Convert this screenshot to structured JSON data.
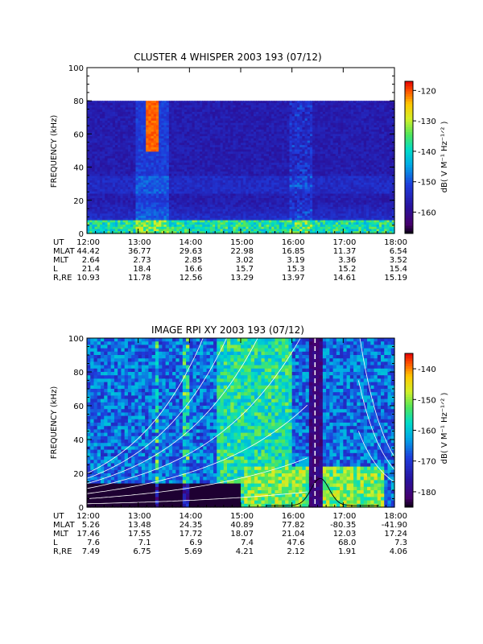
{
  "chart_data": [
    {
      "type": "heatmap",
      "title": "CLUSTER 4 WHISPER 2003 193 (07/12)",
      "ylabel": "FREQUENCY (kHz)",
      "yticks": [
        0,
        20,
        40,
        60,
        80,
        100
      ],
      "ylim": [
        0,
        100
      ],
      "data_top_khz": 80,
      "colorbar": {
        "label": "dB( V M⁻¹ Hz⁻¹ᐟ² )",
        "ticks": [
          -120,
          -130,
          -140,
          -150,
          -160
        ],
        "range": [
          -167,
          -117
        ]
      },
      "xticks": [
        "12:00",
        "13:00",
        "14:00",
        "15:00",
        "16:00",
        "17:00",
        "18:00"
      ],
      "xlim_hours": [
        12,
        18
      ],
      "ephemeris": [
        {
          "label": "UT",
          "values": [
            "12:00",
            "13:00",
            "14:00",
            "15:00",
            "16:00",
            "17:00",
            "18:00"
          ]
        },
        {
          "label": "MLAT",
          "values": [
            "44.42",
            "36.77",
            "29.63",
            "22.98",
            "16.85",
            "11.37",
            "6.54"
          ]
        },
        {
          "label": "MLT",
          "values": [
            "2.64",
            "2.73",
            "2.85",
            "3.02",
            "3.19",
            "3.36",
            "3.52"
          ]
        },
        {
          "label": "L",
          "values": [
            "21.4",
            "18.4",
            "16.6",
            "15.7",
            "15.3",
            "15.2",
            "15.4"
          ]
        },
        {
          "label": "R,RE",
          "values": [
            "10.93",
            "11.78",
            "12.56",
            "13.29",
            "13.97",
            "14.61",
            "15.19"
          ]
        }
      ]
    },
    {
      "type": "heatmap",
      "title": "IMAGE RPI XY 2003 193 (07/12)",
      "ylabel": "FREQUENCY (kHz)",
      "yticks": [
        0,
        20,
        40,
        60,
        80,
        100
      ],
      "ylim": [
        0,
        100
      ],
      "colorbar": {
        "label": "dB( V M⁻¹ Hz⁻¹ᐟ² )",
        "ticks": [
          -140,
          -150,
          -160,
          -170,
          -180
        ],
        "range": [
          -185,
          -135
        ]
      },
      "xticks": [
        "12:00",
        "13:00",
        "14:00",
        "15:00",
        "16:00",
        "17:00",
        "18:00"
      ],
      "xlim_hours": [
        12,
        18
      ],
      "ephemeris": [
        {
          "label": "UT",
          "values": [
            "12:00",
            "13:00",
            "14:00",
            "15:00",
            "16:00",
            "17:00",
            "18:00"
          ]
        },
        {
          "label": "MLAT",
          "values": [
            "5.26",
            "13.48",
            "24.35",
            "40.89",
            "77.82",
            "-80.35",
            "-41.90"
          ]
        },
        {
          "label": "MLT",
          "values": [
            "17.46",
            "17.55",
            "17.72",
            "18.07",
            "21.04",
            "12.03",
            "17.24"
          ]
        },
        {
          "label": "L",
          "values": [
            "7.6",
            "7.1",
            "6.9",
            "7.4",
            "47.6",
            "68.0",
            "7.3"
          ]
        },
        {
          "label": "R,RE",
          "values": [
            "7.49",
            "6.75",
            "5.69",
            "4.21",
            "2.12",
            "1.91",
            "4.06"
          ]
        }
      ]
    }
  ]
}
